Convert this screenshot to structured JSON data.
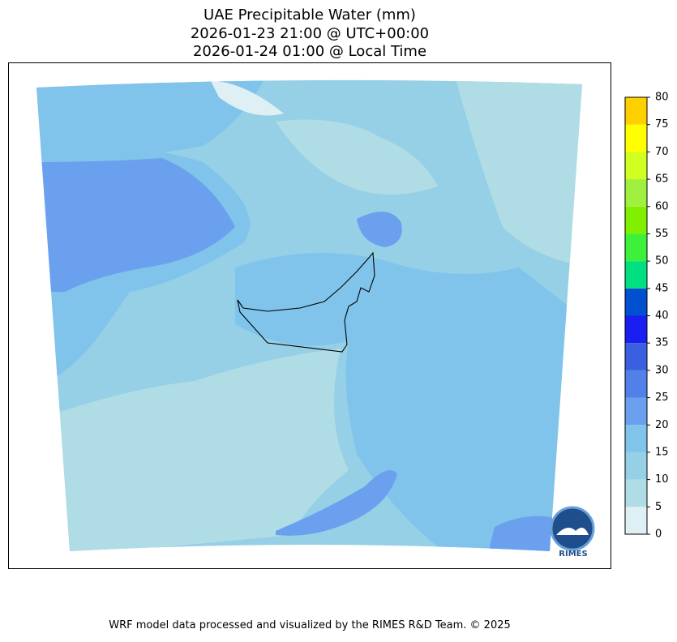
{
  "title": [
    "UAE Precipitable Water (mm)",
    "2026-01-23 21:00 @ UTC+00:00",
    "2026-01-24 01:00 @ Local Time"
  ],
  "colorbar": {
    "ticks": [
      0,
      5,
      10,
      15,
      20,
      25,
      30,
      35,
      40,
      45,
      50,
      55,
      60,
      65,
      70,
      75,
      80
    ],
    "colors": [
      "#dff0f5",
      "#b0dce6",
      "#96d0e6",
      "#80c4ec",
      "#6aa0ee",
      "#5080e8",
      "#3a60e0",
      "#1a1ef0",
      "#0050d0",
      "#00e080",
      "#3cf03c",
      "#80f000",
      "#a0f040",
      "#d0ff20",
      "#ffff00",
      "#ffd000"
    ]
  },
  "logo": "RIMES",
  "footer": "WRF model data processed and visualized by the RIMES R&D Team. © 2025"
}
